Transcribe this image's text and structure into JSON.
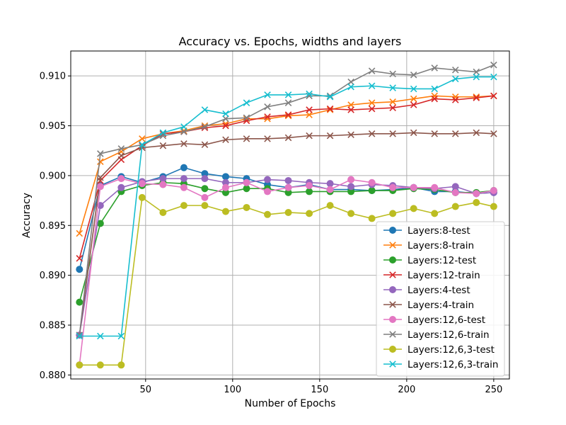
{
  "chart_data": {
    "type": "line",
    "title": "Accuracy vs. Epochs, widths and layers",
    "xlabel": "Number of Epochs",
    "ylabel": "Accuracy",
    "xlim": [
      7,
      259
    ],
    "ylim": [
      0.8796,
      0.9125
    ],
    "xticks": [
      50,
      100,
      150,
      200,
      250
    ],
    "yticks": [
      0.88,
      0.885,
      0.89,
      0.895,
      0.9,
      0.905,
      0.91
    ],
    "xtick_labels": [
      "50",
      "100",
      "150",
      "200",
      "250"
    ],
    "ytick_labels": [
      "0.880",
      "0.885",
      "0.890",
      "0.895",
      "0.900",
      "0.905",
      "0.910"
    ],
    "grid": true,
    "legend_position": "lower-right",
    "x": [
      12,
      24,
      36,
      48,
      60,
      72,
      84,
      96,
      108,
      120,
      132,
      144,
      156,
      168,
      180,
      192,
      204,
      216,
      228,
      240,
      250
    ],
    "series": [
      {
        "name": "Layers:8-test",
        "color": "#1f77b4",
        "marker": "circle",
        "values": [
          0.8906,
          0.899,
          0.8999,
          0.8993,
          0.8999,
          0.9008,
          0.9002,
          0.8999,
          0.8997,
          0.8991,
          0.8988,
          0.8991,
          0.8986,
          0.8986,
          0.8985,
          0.8986,
          0.8988,
          0.8984,
          0.8984,
          0.8982,
          0.8983
        ]
      },
      {
        "name": "Layers:8-train",
        "color": "#ff7f0e",
        "marker": "x",
        "values": [
          0.8942,
          0.9014,
          0.9024,
          0.9037,
          0.9042,
          0.9045,
          0.905,
          0.9052,
          0.9057,
          0.9057,
          0.906,
          0.9061,
          0.9066,
          0.9071,
          0.9073,
          0.9074,
          0.9077,
          0.908,
          0.9079,
          0.9079,
          0.908
        ]
      },
      {
        "name": "Layers:12-test",
        "color": "#2ca02c",
        "marker": "circle",
        "values": [
          0.8873,
          0.8952,
          0.8984,
          0.899,
          0.8993,
          0.8992,
          0.8987,
          0.8983,
          0.8987,
          0.8987,
          0.8983,
          0.8984,
          0.8984,
          0.8984,
          0.8985,
          0.8985,
          0.8987,
          0.8986,
          0.8983,
          0.8983,
          0.8985
        ]
      },
      {
        "name": "Layers:12-train",
        "color": "#d62728",
        "marker": "x",
        "values": [
          0.8917,
          0.8995,
          0.9016,
          0.903,
          0.9042,
          0.9044,
          0.9048,
          0.905,
          0.9055,
          0.9059,
          0.9061,
          0.9066,
          0.9067,
          0.9066,
          0.9067,
          0.9068,
          0.9071,
          0.9077,
          0.9076,
          0.9078,
          0.908
        ]
      },
      {
        "name": "Layers:4-test",
        "color": "#9467bd",
        "marker": "circle",
        "values": [
          0.884,
          0.897,
          0.8988,
          0.8994,
          0.8997,
          0.8997,
          0.8997,
          0.8993,
          0.8993,
          0.8996,
          0.8995,
          0.8993,
          0.8992,
          0.8989,
          0.8991,
          0.899,
          0.8988,
          0.8987,
          0.8989,
          0.8982,
          0.8983
        ]
      },
      {
        "name": "Layers:4-train",
        "color": "#8c564b",
        "marker": "x",
        "values": [
          0.884,
          0.8998,
          0.902,
          0.9028,
          0.903,
          0.9032,
          0.9031,
          0.9036,
          0.9037,
          0.9037,
          0.9038,
          0.904,
          0.904,
          0.9041,
          0.9042,
          0.9042,
          0.9043,
          0.9042,
          0.9042,
          0.9043,
          0.9042
        ]
      },
      {
        "name": "Layers:12,6-test",
        "color": "#e377c2",
        "marker": "circle",
        "values": [
          0.881,
          0.8989,
          0.8997,
          0.8992,
          0.8991,
          0.8988,
          0.8978,
          0.8988,
          0.8993,
          0.8984,
          0.8988,
          0.899,
          0.8986,
          0.8996,
          0.8993,
          0.8988,
          0.8988,
          0.8988,
          0.8983,
          0.8982,
          0.8985
        ]
      },
      {
        "name": "Layers:12,6-train",
        "color": "#7f7f7f",
        "marker": "x",
        "values": [
          0.884,
          0.9022,
          0.9027,
          0.9031,
          0.904,
          0.9044,
          0.9049,
          0.9057,
          0.9058,
          0.9069,
          0.9073,
          0.908,
          0.908,
          0.9094,
          0.9105,
          0.9102,
          0.9101,
          0.9108,
          0.9106,
          0.9104,
          0.9111
        ]
      },
      {
        "name": "Layers:12,6,3-test",
        "color": "#bcbd22",
        "marker": "circle",
        "values": [
          0.881,
          0.881,
          0.881,
          0.8978,
          0.8963,
          0.897,
          0.897,
          0.8964,
          0.8968,
          0.8961,
          0.8963,
          0.8962,
          0.897,
          0.8962,
          0.8957,
          0.8962,
          0.8967,
          0.8962,
          0.8969,
          0.8973,
          0.8969
        ]
      },
      {
        "name": "Layers:12,6,3-train",
        "color": "#17becf",
        "marker": "x",
        "values": [
          0.8839,
          0.8839,
          0.8839,
          0.9031,
          0.9043,
          0.9049,
          0.9066,
          0.9062,
          0.9073,
          0.9081,
          0.9081,
          0.9082,
          0.9079,
          0.9089,
          0.909,
          0.9088,
          0.9087,
          0.9087,
          0.9097,
          0.9099,
          0.9099
        ]
      }
    ]
  }
}
